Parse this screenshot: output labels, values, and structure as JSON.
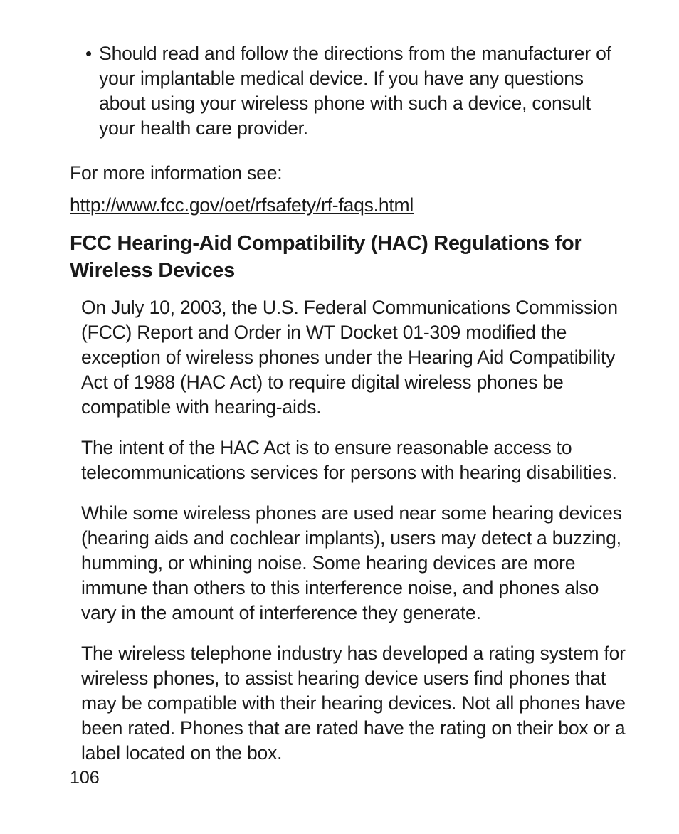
{
  "colors": {
    "text": "#1a1a1a",
    "background": "#ffffff"
  },
  "typography": {
    "body_fontsize_pt": 20,
    "body_lineheight_pt": 26,
    "heading_fontsize_pt": 22,
    "heading_weight": 900,
    "font_family_body": "Helvetica Neue Condensed / Helvetica",
    "font_family_heading": "Arial Black / Helvetica Black"
  },
  "bullet": {
    "marker": "•",
    "text": "Should read and follow the directions from the manufacturer of your implantable medical device. If you have any questions about using your wireless phone with such a device, consult your health care provider."
  },
  "info_line": "For more information see:",
  "link": "http://www.fcc.gov/oet/rfsafety/rf-faqs.html",
  "heading": "FCC Hearing-Aid Compatibility (HAC) Regulations for Wireless Devices",
  "paragraphs": [
    "On July 10, 2003, the U.S. Federal Communications Commission (FCC) Report and Order in WT Docket 01-309 modified the exception of wireless phones under the Hearing Aid Compatibility Act of 1988 (HAC Act) to require digital wireless phones be compatible with hearing-aids.",
    "The intent of the HAC Act is to ensure reasonable access to telecommunications services for persons with hearing disabilities.",
    "While some wireless phones are used near some hearing devices (hearing aids and cochlear implants), users may detect a buzzing, humming, or whining noise. Some hearing devices are more immune than others to this interference noise, and phones also vary in the amount of interference they generate.",
    "The wireless telephone industry has developed a rating system for wireless phones, to assist hearing device users find phones that may be compatible with their hearing devices. Not all phones have been rated. Phones that are rated have the rating on their box or a label located on the box."
  ],
  "page_number": "106"
}
